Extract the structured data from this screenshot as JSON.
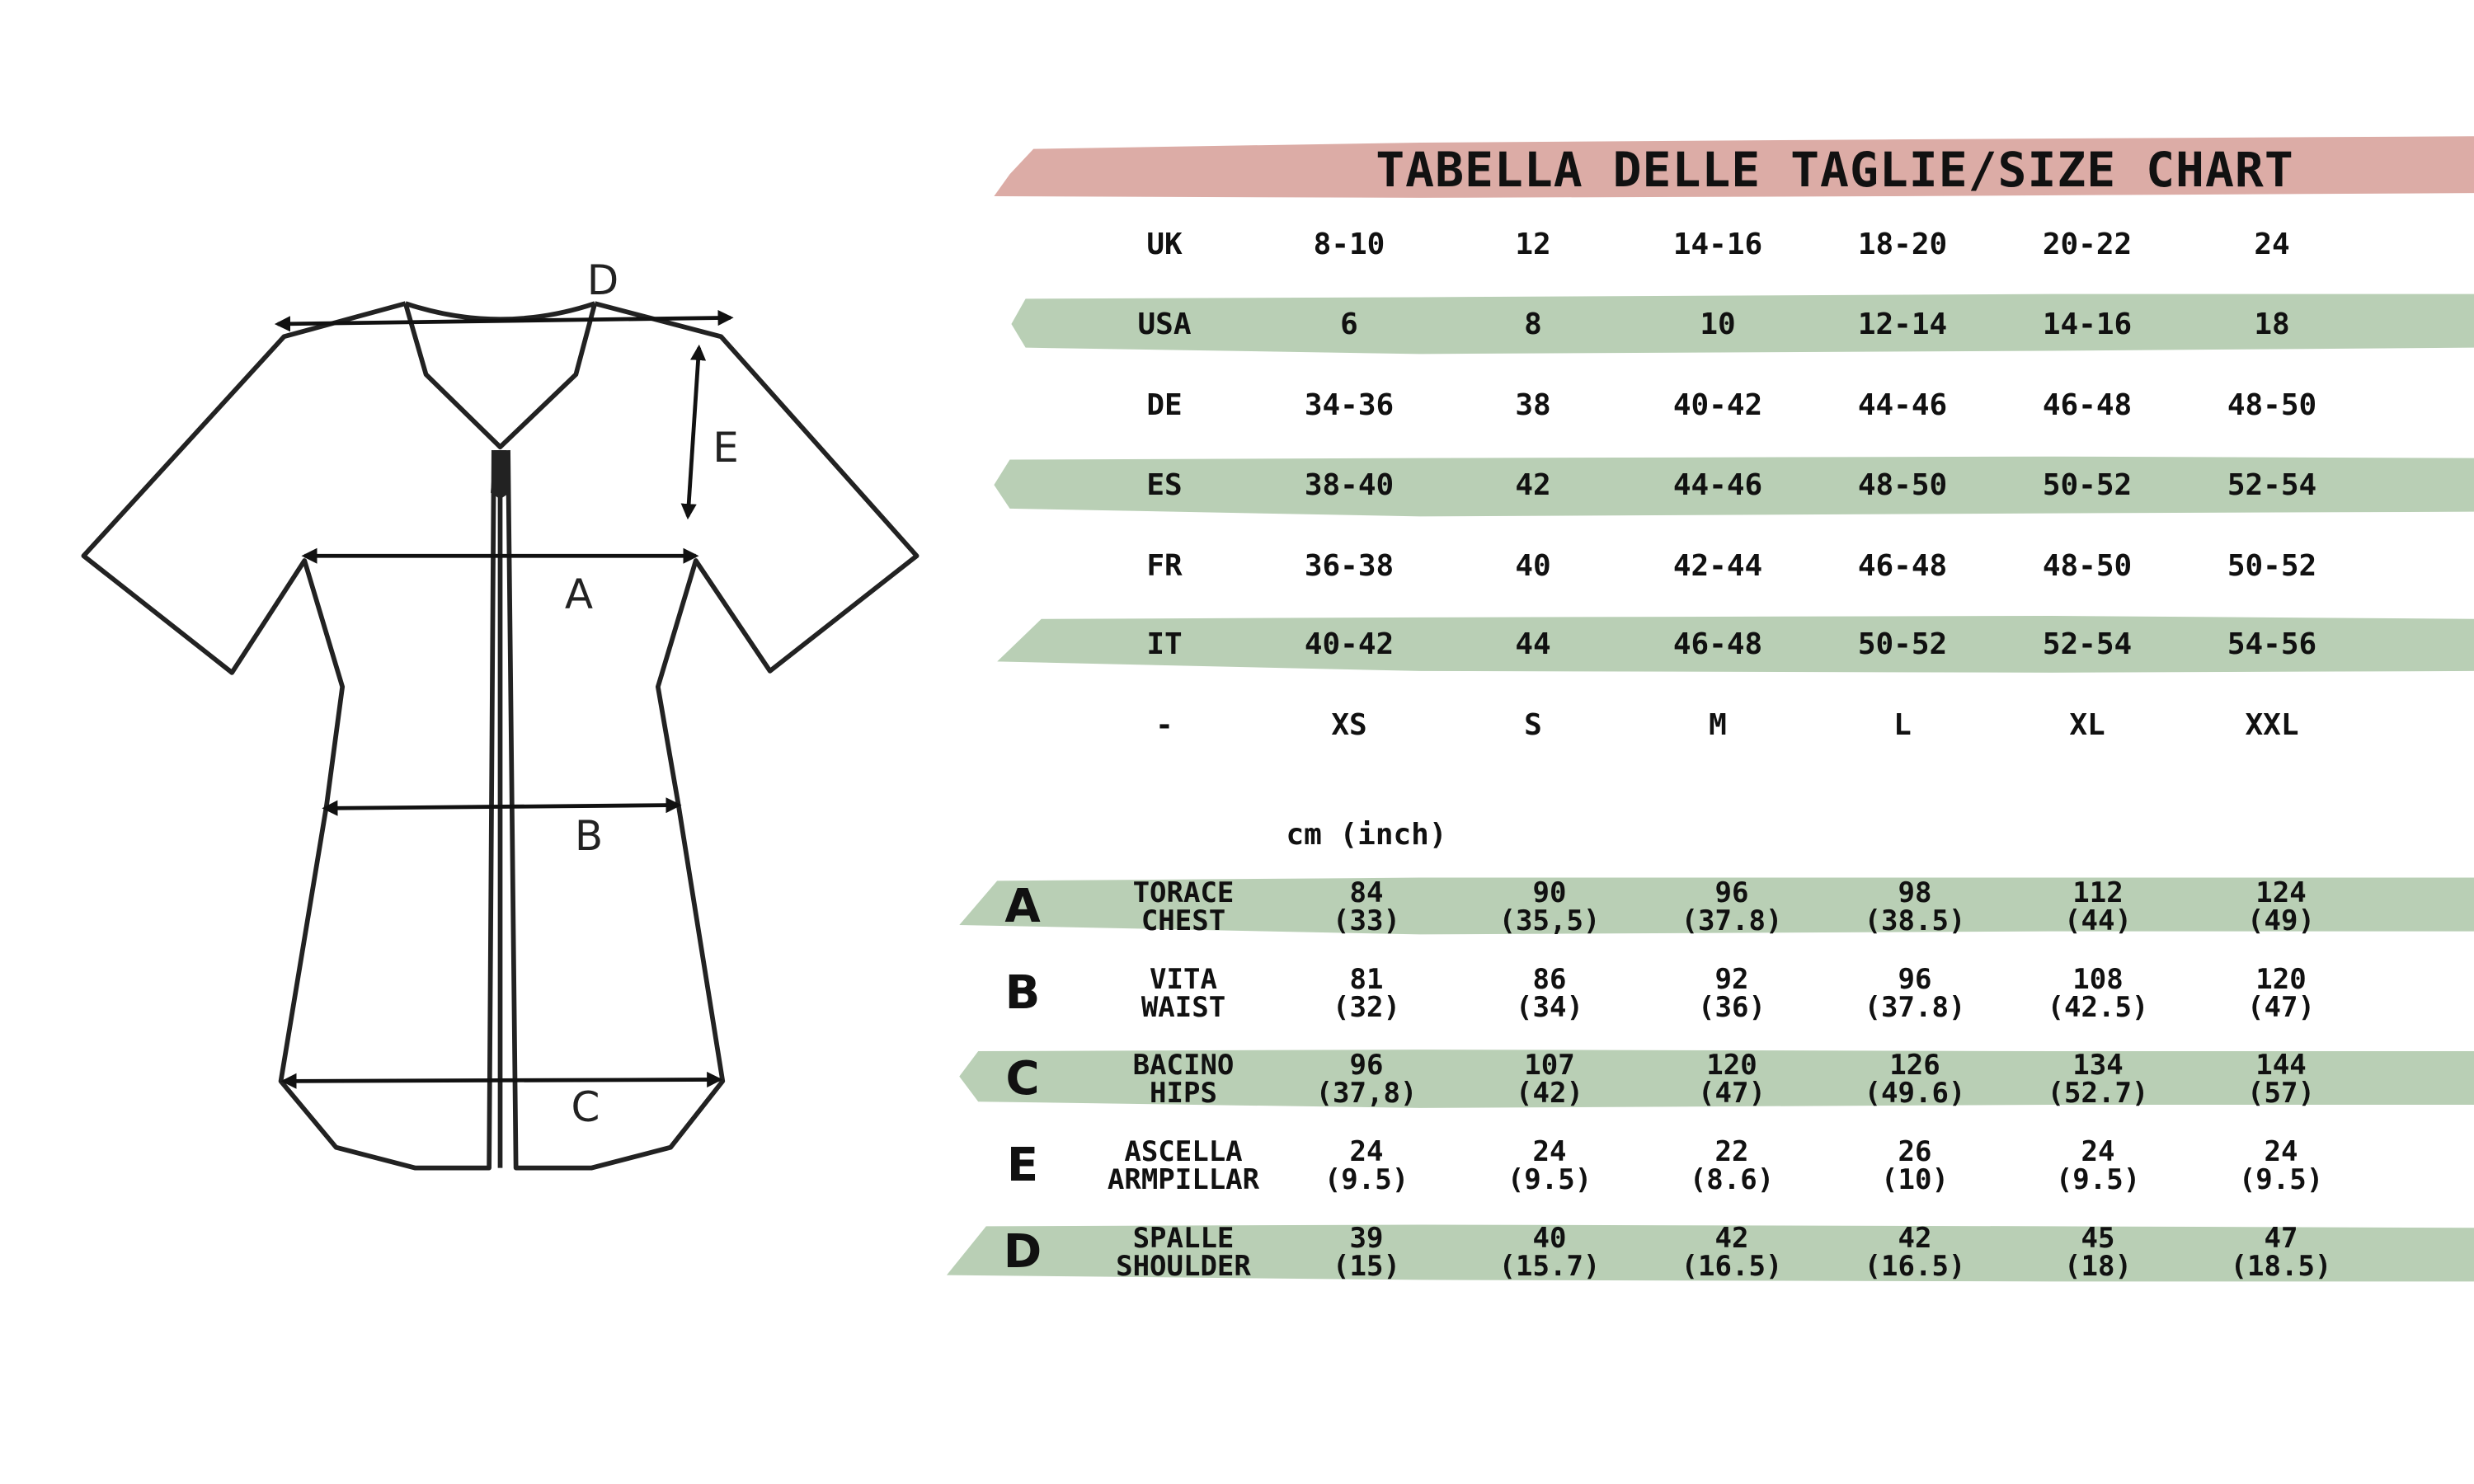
{
  "title": "TABELLA DELLE TAGLIE/SIZE CHART",
  "colors": {
    "title_band": "#dcaca6",
    "row_band": "#b9cfb5",
    "ink": "#111111"
  },
  "shirt": {
    "labels": {
      "A": "A",
      "B": "B",
      "C": "C",
      "D": "D",
      "E": "E"
    }
  },
  "size_table": {
    "rows": [
      {
        "label": "UK",
        "values": [
          "8-10",
          "12",
          "14-16",
          "18-20",
          "20-22",
          "24"
        ]
      },
      {
        "label": "USA",
        "values": [
          "6",
          "8",
          "10",
          "12-14",
          "14-16",
          "18"
        ]
      },
      {
        "label": "DE",
        "values": [
          "34-36",
          "38",
          "40-42",
          "44-46",
          "46-48",
          "48-50"
        ]
      },
      {
        "label": "ES",
        "values": [
          "38-40",
          "42",
          "44-46",
          "48-50",
          "50-52",
          "52-54"
        ]
      },
      {
        "label": "FR",
        "values": [
          "36-38",
          "40",
          "42-44",
          "46-48",
          "48-50",
          "50-52"
        ]
      },
      {
        "label": "IT",
        "values": [
          "40-42",
          "44",
          "46-48",
          "50-52",
          "52-54",
          "54-56"
        ]
      },
      {
        "label": "-",
        "values": [
          "XS",
          "S",
          "M",
          "L",
          "XL",
          "XXL"
        ]
      }
    ]
  },
  "measure_table": {
    "unit": "cm (inch)",
    "rows": [
      {
        "letter": "A",
        "label_it": "TORACE",
        "label_en": "CHEST",
        "cm": [
          "84",
          "90",
          "96",
          "98",
          "112",
          "124"
        ],
        "inch": [
          "(33)",
          "(35,5)",
          "(37.8)",
          "(38.5)",
          "(44)",
          "(49)"
        ]
      },
      {
        "letter": "B",
        "label_it": "VITA",
        "label_en": "WAIST",
        "cm": [
          "81",
          "86",
          "92",
          "96",
          "108",
          "120"
        ],
        "inch": [
          "(32)",
          "(34)",
          "(36)",
          "(37.8)",
          "(42.5)",
          "(47)"
        ]
      },
      {
        "letter": "C",
        "label_it": "BACINO",
        "label_en": "HIPS",
        "cm": [
          "96",
          "107",
          "120",
          "126",
          "134",
          "144"
        ],
        "inch": [
          "(37,8)",
          "(42)",
          "(47)",
          "(49.6)",
          "(52.7)",
          "(57)"
        ]
      },
      {
        "letter": "E",
        "label_it": "ASCELLA",
        "label_en": "ARMPILLAR",
        "cm": [
          "24",
          "24",
          "22",
          "26",
          "24",
          "24"
        ],
        "inch": [
          "(9.5)",
          "(9.5)",
          "(8.6)",
          "(10)",
          "(9.5)",
          "(9.5)"
        ]
      },
      {
        "letter": "D",
        "label_it": "SPALLE",
        "label_en": "SHOULDER",
        "cm": [
          "39",
          "40",
          "42",
          "42",
          "45",
          "47"
        ],
        "inch": [
          "(15)",
          "(15.7)",
          "(16.5)",
          "(16.5)",
          "(18)",
          "(18.5)"
        ]
      }
    ]
  }
}
